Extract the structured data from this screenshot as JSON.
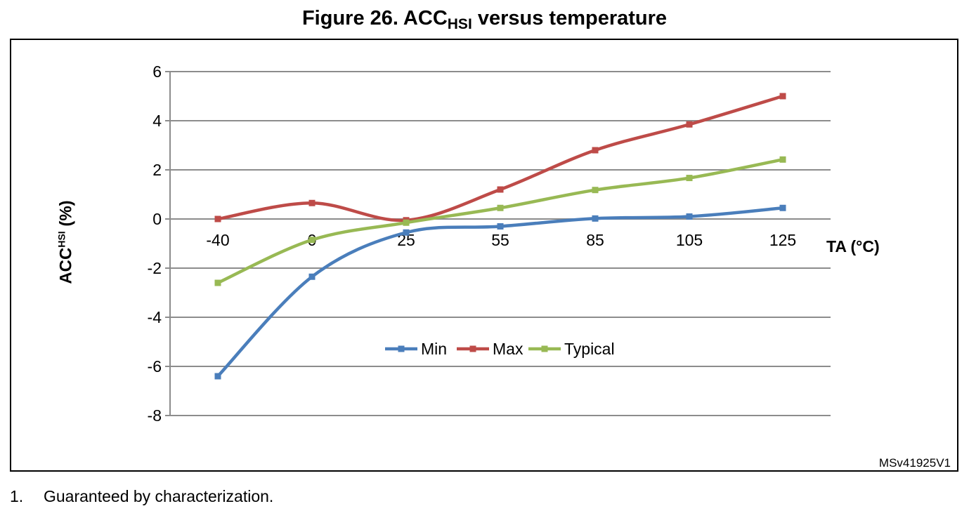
{
  "figure": {
    "title_main": "Figure 26. ACC",
    "title_sub": "HSI",
    "title_rest": " versus temperature",
    "reference": "MSv41925V1",
    "note_number": "1.",
    "note_text": "Guaranteed by characterization."
  },
  "chart_data": {
    "type": "line",
    "title": "Figure 26. ACCHSI versus temperature",
    "xlabel": "TA (°C)",
    "ylabel_main": "ACC",
    "ylabel_sup": "HSI",
    "ylabel_unit": " (%)",
    "categories": [
      "-40",
      "0",
      "25",
      "55",
      "85",
      "105",
      "125"
    ],
    "y_ticks": [
      "6",
      "4",
      "2",
      "0",
      "-2",
      "-4",
      "-6",
      "-8"
    ],
    "ylim": [
      -8,
      6
    ],
    "grid": true,
    "legend_position": "center-bottom",
    "series": [
      {
        "name": "Min",
        "color": "#4a7ebb",
        "values": [
          -6.4,
          -2.35,
          -0.55,
          -0.3,
          0.02,
          0.1,
          0.45
        ]
      },
      {
        "name": "Max",
        "color": "#be4b48",
        "values": [
          0.0,
          0.65,
          -0.05,
          1.2,
          2.8,
          3.85,
          5.0
        ]
      },
      {
        "name": "Typical",
        "color": "#98b954",
        "values": [
          -2.6,
          -0.85,
          -0.15,
          0.45,
          1.18,
          1.67,
          2.42
        ]
      }
    ]
  }
}
